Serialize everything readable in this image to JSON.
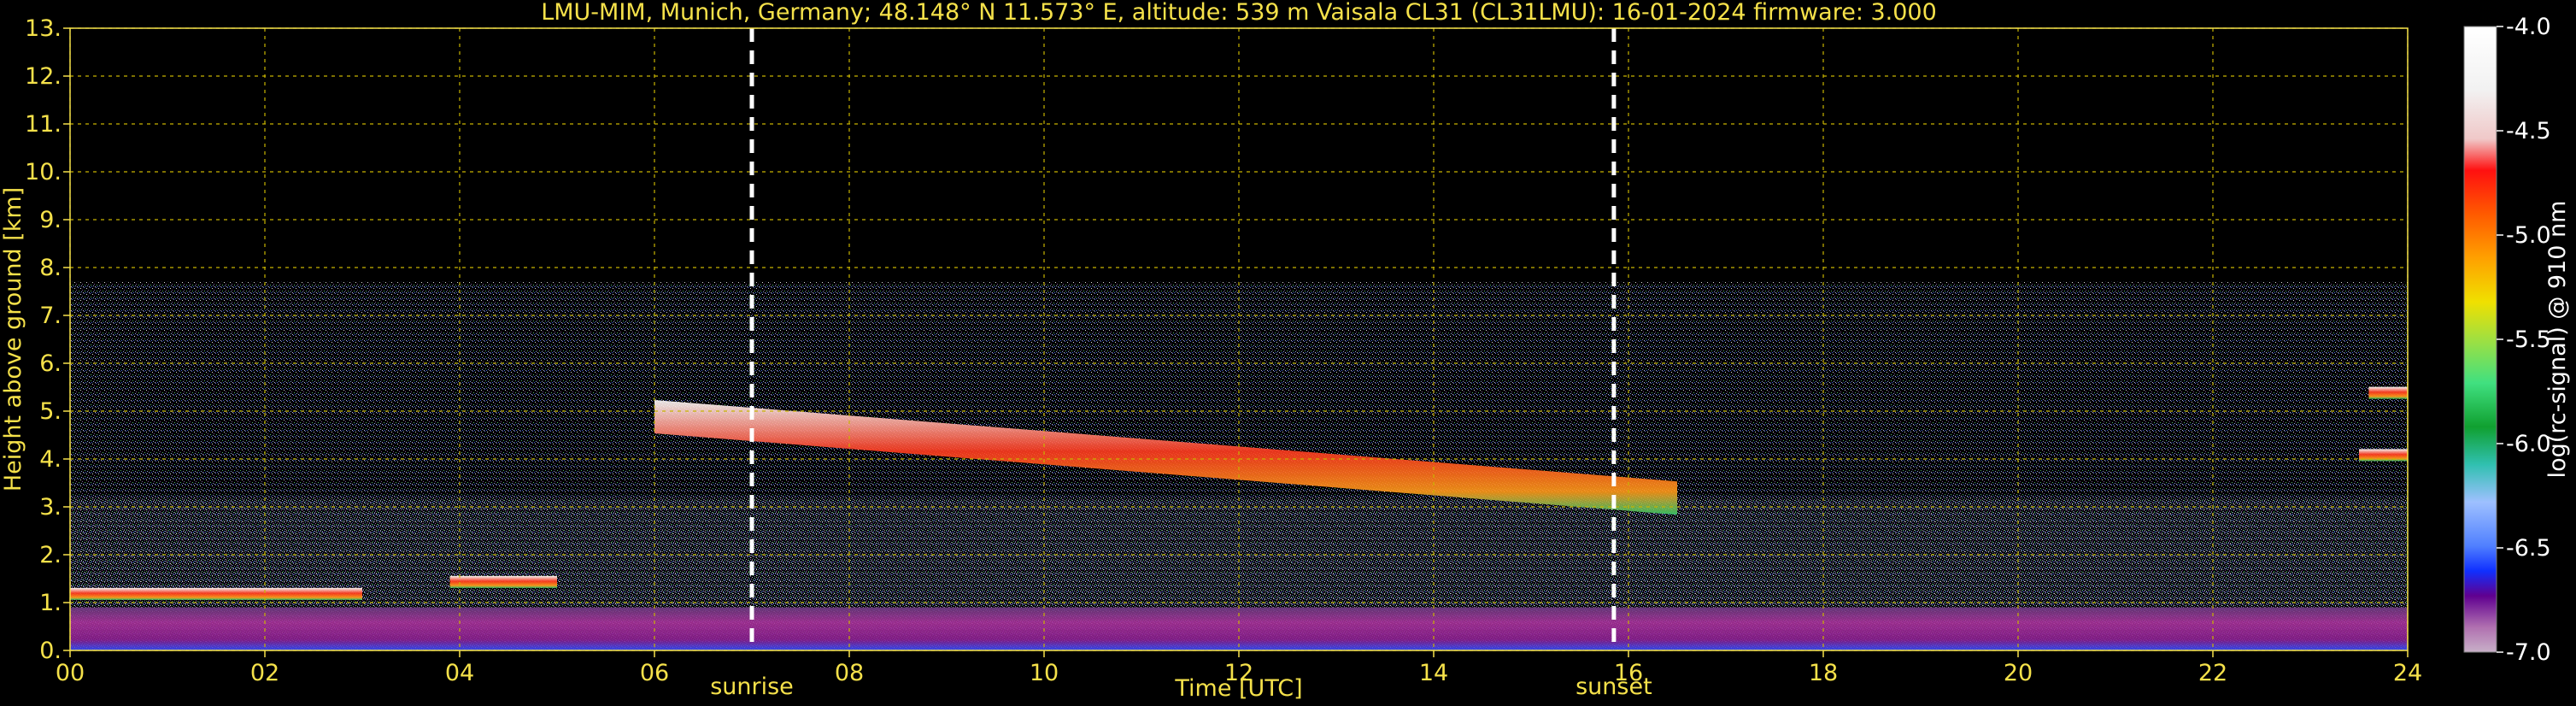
{
  "title": "LMU-MIM, Munich, Germany; 48.148° N 11.573° E, altitude: 539 m    Vaisala CL31 (CL31LMU): 16-01-2024    firmware: 3.000",
  "chart_data": {
    "type": "heatmap",
    "title": "LMU-MIM, Munich, Germany; 48.148° N 11.573° E, altitude: 539 m    Vaisala CL31 (CL31LMU): 16-01-2024    firmware: 3.000",
    "xlabel": "Time [UTC]",
    "ylabel": "Height above ground [km]",
    "xlim": [
      0,
      24
    ],
    "ylim": [
      0,
      13
    ],
    "x_ticks": [
      "00",
      "02",
      "04",
      "06",
      "08",
      "10",
      "12",
      "14",
      "16",
      "18",
      "20",
      "22",
      "24"
    ],
    "y_ticks": [
      "0.",
      "1.",
      "2.",
      "3.",
      "4.",
      "5.",
      "6.",
      "7.",
      "8.",
      "9.",
      "10.",
      "11.",
      "12.",
      "13."
    ],
    "grid": true,
    "markers": [
      {
        "label": "sunrise",
        "time": 7.0
      },
      {
        "label": "sunset",
        "time": 15.85
      }
    ],
    "colorbar": {
      "label": "log(rc-signal) @ 910 nm",
      "range": [
        -7.0,
        -4.0
      ],
      "ticks": [
        "-4.0",
        "-4.5",
        "-5.0",
        "-5.5",
        "-6.0",
        "-6.5",
        "-7.0"
      ]
    },
    "features": [
      {
        "name": "low cloud layer",
        "t_start": 0.0,
        "t_end": 3.0,
        "height_km": 1.2
      },
      {
        "name": "cloud patch",
        "t_start": 3.9,
        "t_end": 5.0,
        "height_km": 1.45
      },
      {
        "name": "mid-level cloud",
        "t_start": 6.0,
        "t_end": 16.5,
        "height_start_km": 5.0,
        "height_end_km": 3.3
      },
      {
        "name": "cloud fragment",
        "t_start": 23.6,
        "t_end": 24.0,
        "height_km": 5.4
      },
      {
        "name": "cloud fragment",
        "t_start": 23.5,
        "t_end": 24.0,
        "height_km": 4.1
      },
      {
        "name": "boundary layer",
        "t_start": 0.0,
        "t_end": 24.0,
        "height_km": 0.9
      }
    ],
    "signal_top_km": 7.7
  },
  "colors": {
    "axis": "#f5e14a",
    "grid": "#c8b400",
    "marker": "#ffffff",
    "colorbar_label": "#ffffff"
  }
}
